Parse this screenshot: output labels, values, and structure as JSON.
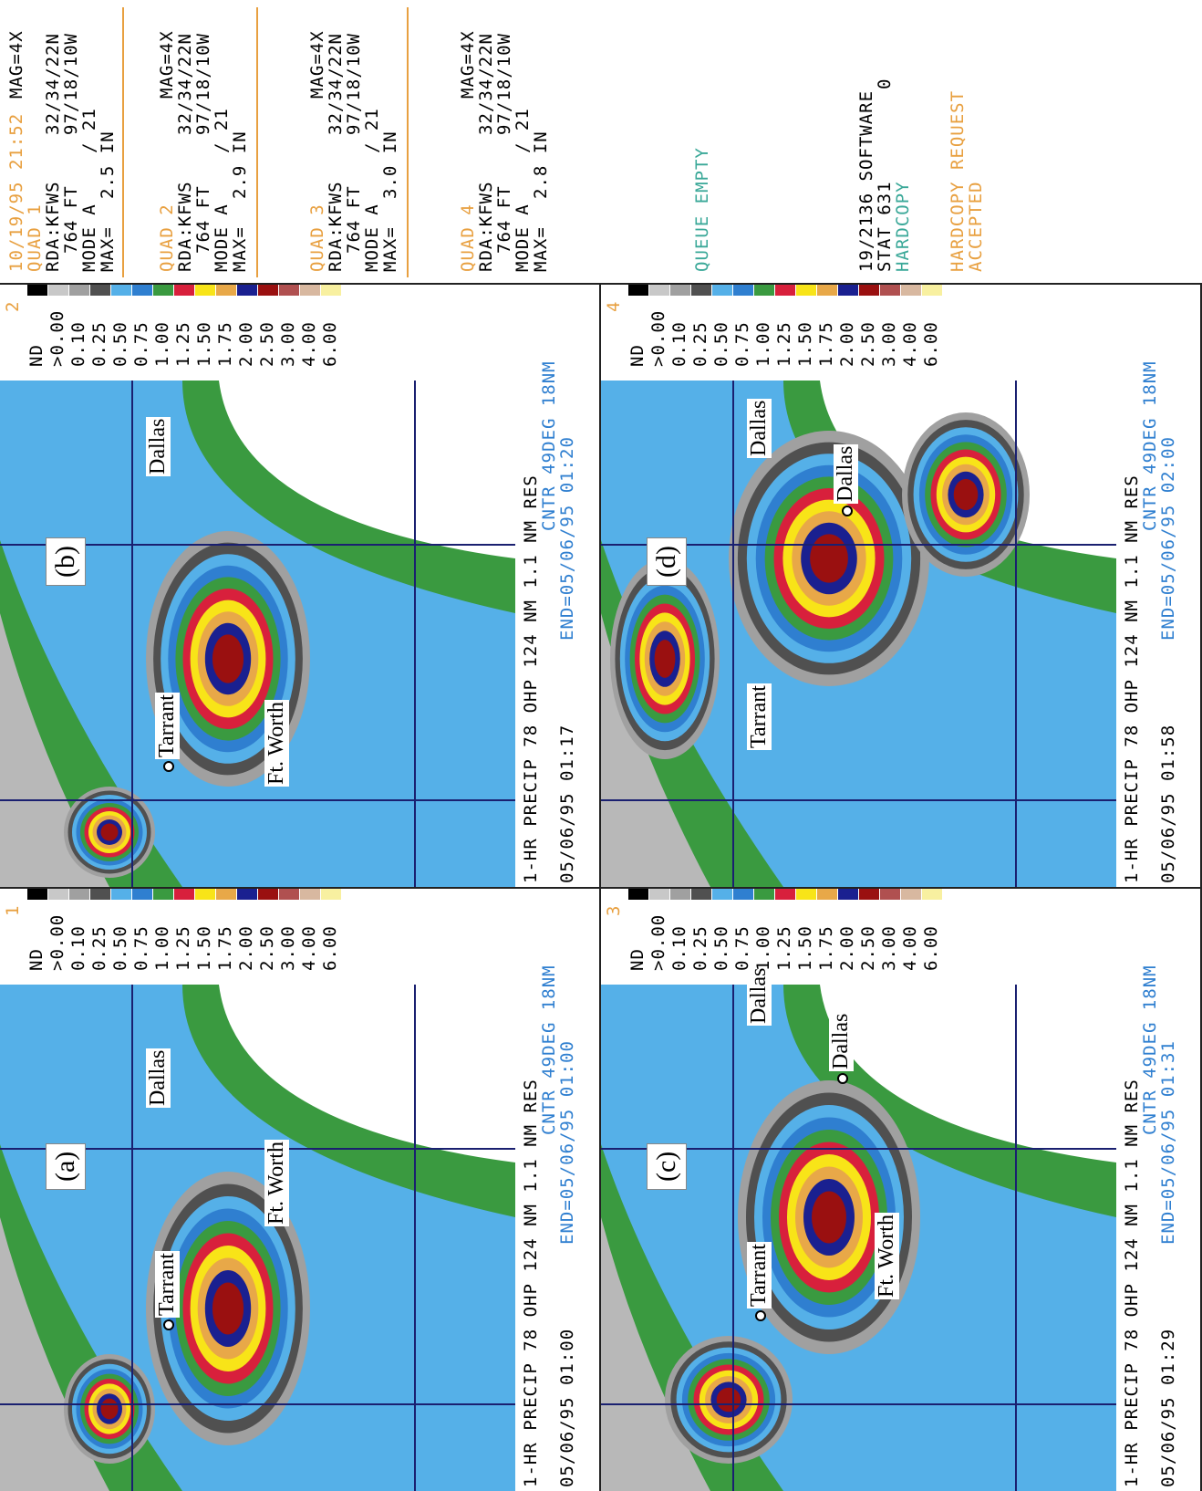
{
  "header": {
    "timestamp": "10/19/95 21:52"
  },
  "legend": {
    "labels": [
      "ND",
      ">0.00",
      "0.10",
      "0.25",
      "0.50",
      "0.75",
      "1.00",
      "1.25",
      "1.50",
      "1.75",
      "2.00",
      "2.50",
      "3.00",
      "4.00",
      "6.00"
    ],
    "colors": [
      "#000000",
      "#c8c8c8",
      "#a0a0a0",
      "#505050",
      "#55b0e8",
      "#2f7fd0",
      "#3a9a40",
      "#d8203c",
      "#f8e418",
      "#e8a848",
      "#1a2090",
      "#9a1010",
      "#b05050",
      "#d8b8a0",
      "#f8f0a0"
    ]
  },
  "quads": [
    {
      "number": "1",
      "panel_label": "(a)",
      "title": "1-HR PRECIP 78 OHP 124 NM 1.1 NM RES",
      "center": "CNTR 49DEG 18NM",
      "time": "05/06/95 01:00",
      "end": "END=05/06/95 01:00",
      "places": [
        "Tarrant",
        "Dallas",
        "Ft. Worth"
      ]
    },
    {
      "number": "2",
      "panel_label": "(b)",
      "title": "1-HR PRECIP 78 OHP 124 NM 1.1 NM RES",
      "center": "CNTR 49DEG 18NM",
      "time": "05/06/95 01:17",
      "end": "END=05/06/95 01:20",
      "places": [
        "Tarrant",
        "Dallas",
        "Ft. Worth"
      ]
    },
    {
      "number": "3",
      "panel_label": "(c)",
      "title": "1-HR PRECIP 78 OHP 124 NM 1.1 NM RES",
      "center": "CNTR 49DEG 18NM",
      "time": "05/06/95 01:29",
      "end": "END=05/06/95 01:31",
      "places": [
        "Tarrant",
        "Dallas",
        "Ft. Worth",
        "Dallas"
      ]
    },
    {
      "number": "4",
      "panel_label": "(d)",
      "title": "1-HR PRECIP 78 OHP 124 NM 1.1 NM RES",
      "center": "CNTR 49DEG 18NM",
      "time": "05/06/95 01:58",
      "end": "END=05/06/95 02:00",
      "places": [
        "Tarrant",
        "Dallas",
        "Dallas"
      ]
    }
  ],
  "panel": {
    "quads": [
      {
        "quad": "QUAD 1",
        "mag": "MAG=4X",
        "rda": "RDA:KFWS",
        "lat": "32/34/22N",
        "elev": "764 FT",
        "lon": "97/18/10W",
        "mode": "MODE A",
        "vcp": "/ 21",
        "max_label": "MAX=",
        "max": "2.5 IN"
      },
      {
        "quad": "QUAD 2",
        "mag": "MAG=4X",
        "rda": "RDA:KFWS",
        "lat": "32/34/22N",
        "elev": "764 FT",
        "lon": "97/18/10W",
        "mode": "MODE A",
        "vcp": "/ 21",
        "max_label": "MAX=",
        "max": "2.9 IN"
      },
      {
        "quad": "QUAD 3",
        "mag": "MAG=4X",
        "rda": "RDA:KFWS",
        "lat": "32/34/22N",
        "elev": "764 FT",
        "lon": "97/18/10W",
        "mode": "MODE A",
        "vcp": "/ 21",
        "max_label": "MAX=",
        "max": "3.0 IN"
      },
      {
        "quad": "QUAD 4",
        "mag": "MAG=4X",
        "rda": "RDA:KFWS",
        "lat": "32/34/22N",
        "elev": "764 FT",
        "lon": "97/18/10W",
        "mode": "MODE A",
        "vcp": "/ 21",
        "max_label": "MAX=",
        "max": "2.8 IN"
      }
    ],
    "queue": "QUEUE EMPTY",
    "software": "19/2136 SOFTWARE",
    "stat": "STAT 631",
    "stat_value": "0",
    "hardcopy": "HARDCOPY",
    "request": "HARDCOPY REQUEST",
    "accepted": "ACCEPTED"
  }
}
